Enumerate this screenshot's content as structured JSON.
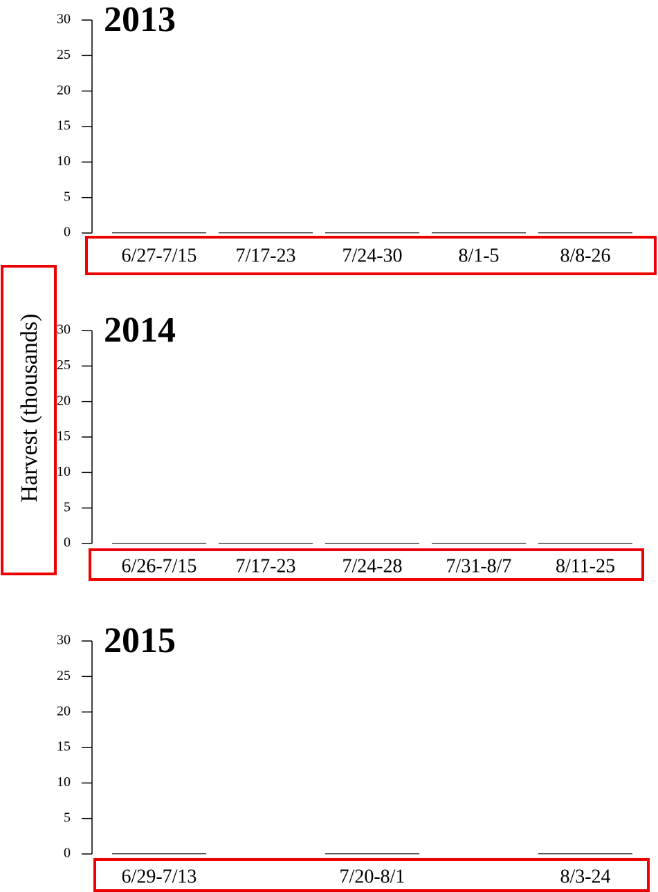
{
  "chart_data": [
    {
      "type": "bar",
      "title": "2013",
      "categories": [
        "6/27-7/15",
        "7/17-23",
        "7/24-30",
        "8/1-5",
        "8/8-26"
      ],
      "values": [
        0,
        0,
        0,
        0,
        0
      ],
      "color": "#000000",
      "ylim": [
        0,
        30
      ],
      "yticks": [
        0,
        5,
        10,
        15,
        20,
        25,
        30
      ]
    },
    {
      "type": "bar",
      "title": "2014",
      "ylabel": "Harvest (thousands)",
      "categories": [
        "6/26-7/15",
        "7/17-23",
        "7/24-28",
        "7/31-8/7",
        "8/11-25"
      ],
      "values": [
        0,
        0,
        0,
        0,
        0
      ],
      "color": "#000000",
      "ylim": [
        0,
        30
      ],
      "yticks": [
        0,
        5,
        10,
        15,
        20,
        25,
        30
      ]
    },
    {
      "type": "bar",
      "title": "2015",
      "categories": [
        "6/29-7/13",
        null,
        "7/20-8/1",
        null,
        "8/3-24"
      ],
      "values": [
        0,
        null,
        0,
        null,
        0
      ],
      "color": "#000000",
      "ylim": [
        0,
        30
      ],
      "yticks": [
        0,
        5,
        10,
        15,
        20,
        25,
        30
      ]
    }
  ]
}
